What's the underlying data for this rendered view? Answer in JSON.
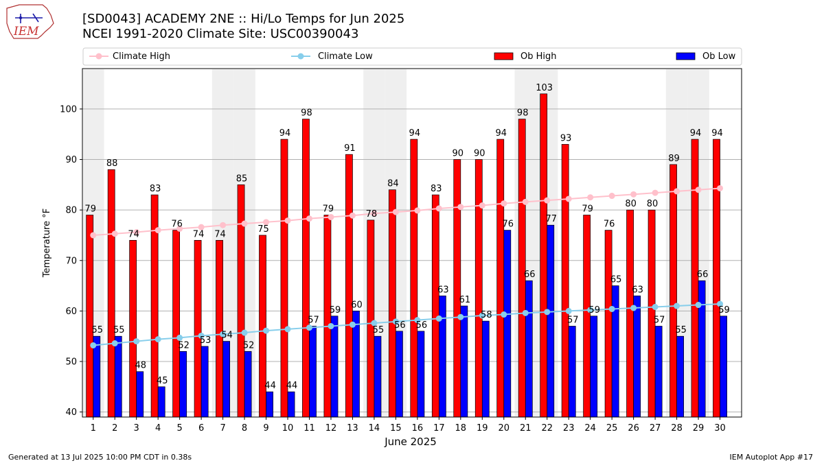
{
  "header": {
    "title_line1": "[SD0043] ACADEMY 2NE :: Hi/Lo Temps for Jun 2025",
    "title_line2": "NCEI 1991-2020 Climate Site: USC00390043",
    "logo_text": "IEM"
  },
  "footer": {
    "generated": "Generated at 13 Jul 2025 10:00 PM CDT in 0.38s",
    "app": "IEM Autoplot App #17"
  },
  "colors": {
    "ob_high": "#ff0000",
    "ob_low": "#0000ff",
    "climate_high": "#ffc0cb",
    "climate_low": "#87ceeb",
    "weekend_shade": "#efefef",
    "grid": "#b0b0b0"
  },
  "chart_data": {
    "type": "bar",
    "xlabel": "June 2025",
    "ylabel": "Temperature °F",
    "ylim": [
      39,
      108
    ],
    "yticks": [
      40,
      50,
      60,
      70,
      80,
      90,
      100
    ],
    "grid": "horizontal",
    "legend_placement": "top",
    "x": [
      1,
      2,
      3,
      4,
      5,
      6,
      7,
      8,
      9,
      10,
      11,
      12,
      13,
      14,
      15,
      16,
      17,
      18,
      19,
      20,
      21,
      22,
      23,
      24,
      25,
      26,
      27,
      28,
      29,
      30
    ],
    "shaded_days": [
      1,
      7,
      8,
      14,
      15,
      21,
      22,
      28,
      29
    ],
    "series": [
      {
        "name": "Climate High",
        "kind": "line",
        "values": [
          75.0,
          75.3,
          75.6,
          76.0,
          76.3,
          76.6,
          77.0,
          77.3,
          77.6,
          77.9,
          78.3,
          78.6,
          78.9,
          79.3,
          79.6,
          79.9,
          80.3,
          80.6,
          80.9,
          81.3,
          81.6,
          81.9,
          82.2,
          82.5,
          82.8,
          83.1,
          83.4,
          83.7,
          84.0,
          84.3
        ]
      },
      {
        "name": "Climate Low",
        "kind": "line",
        "values": [
          53.2,
          53.6,
          54.0,
          54.4,
          54.7,
          55.1,
          55.4,
          55.7,
          56.1,
          56.4,
          56.7,
          57.0,
          57.3,
          57.6,
          57.9,
          58.2,
          58.5,
          58.8,
          59.1,
          59.3,
          59.6,
          59.8,
          60.0,
          60.2,
          60.4,
          60.6,
          60.8,
          61.0,
          61.2,
          61.4
        ]
      },
      {
        "name": "Ob High",
        "kind": "bar",
        "values": [
          79,
          88,
          74,
          83,
          76,
          74,
          74,
          85,
          75,
          94,
          98,
          79,
          91,
          78,
          84,
          94,
          83,
          90,
          90,
          94,
          98,
          103,
          93,
          79,
          76,
          80,
          80,
          89,
          94,
          94
        ]
      },
      {
        "name": "Ob Low",
        "kind": "bar",
        "values": [
          55,
          55,
          48,
          45,
          52,
          53,
          54,
          52,
          44,
          44,
          57,
          59,
          60,
          55,
          56,
          56,
          63,
          61,
          58,
          76,
          66,
          77,
          57,
          59,
          65,
          63,
          57,
          55,
          66,
          59
        ]
      }
    ]
  }
}
